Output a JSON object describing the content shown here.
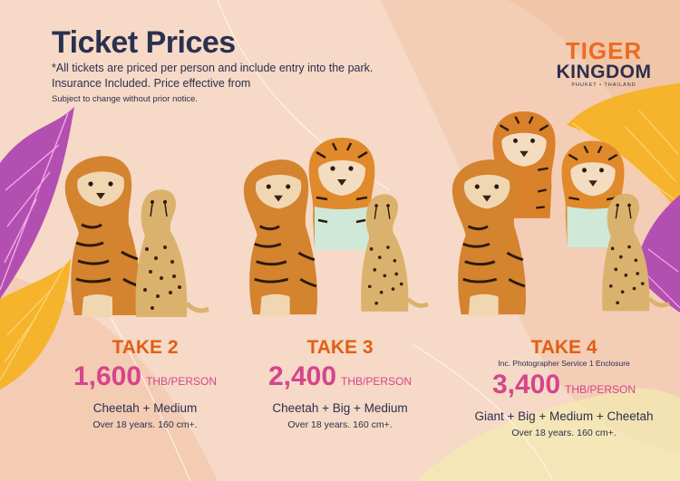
{
  "title": "Ticket Prices",
  "notes": [
    "*All tickets are priced per person and include entry into the park.",
    "Insurance Included. Price effective from"
  ],
  "small_note": "Subject to change without prior notice.",
  "logo": {
    "line1": "TIGER",
    "line2": "KINGDOM",
    "line3": "PHUKET • THAILAND"
  },
  "packages": [
    {
      "take": "TAKE 2",
      "inc": "",
      "price": "1,600",
      "unit": "THB/PERSON",
      "combo": "Cheetah + Medium",
      "age": "Over 18 years. 160 cm+."
    },
    {
      "take": "TAKE 3",
      "inc": "",
      "price": "2,400",
      "unit": "THB/PERSON",
      "combo": "Cheetah + Big + Medium",
      "age": "Over 18 years. 160 cm+."
    },
    {
      "take": "TAKE 4",
      "inc": "Inc. Photographer Service 1 Enclosure",
      "price": "3,400",
      "unit": "THB/PERSON",
      "combo": "Giant + Big + Medium + Cheetah",
      "age": "Over 18 years. 160 cm+."
    }
  ],
  "colors": {
    "accent_orange": "#df5f16",
    "price_pink": "#d5458c",
    "text_navy": "#2a3050",
    "leaf_purple": "#b44fb2",
    "leaf_yellow": "#f6b32c"
  }
}
